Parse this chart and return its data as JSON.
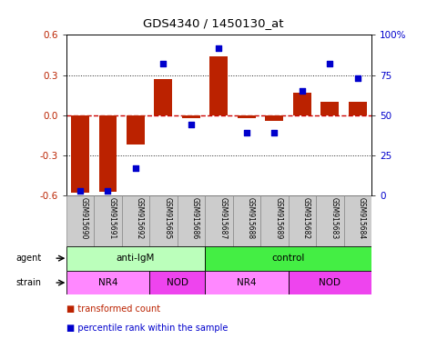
{
  "title": "GDS4340 / 1450130_at",
  "samples": [
    "GSM915690",
    "GSM915691",
    "GSM915692",
    "GSM915685",
    "GSM915686",
    "GSM915687",
    "GSM915688",
    "GSM915689",
    "GSM915682",
    "GSM915683",
    "GSM915684"
  ],
  "bar_values": [
    -0.58,
    -0.57,
    -0.22,
    0.27,
    -0.02,
    0.44,
    -0.02,
    -0.04,
    0.17,
    0.1,
    0.1
  ],
  "dot_values": [
    3,
    3,
    17,
    82,
    44,
    92,
    39,
    39,
    65,
    82,
    73
  ],
  "ylim_left": [
    -0.6,
    0.6
  ],
  "ylim_right": [
    0,
    100
  ],
  "yticks_left": [
    -0.6,
    -0.3,
    0.0,
    0.3,
    0.6
  ],
  "yticks_right": [
    0,
    25,
    50,
    75,
    100
  ],
  "ytick_labels_right": [
    "0",
    "25",
    "50",
    "75",
    "100%"
  ],
  "bar_color": "#bb2200",
  "dot_color": "#0000cc",
  "zero_line_color": "#cc0000",
  "dot_line_color": "#cccccc",
  "grid_color": "#222222",
  "agent_groups": [
    {
      "label": "anti-IgM",
      "start": 0,
      "end": 5,
      "color": "#bbffbb"
    },
    {
      "label": "control",
      "start": 5,
      "end": 11,
      "color": "#44ee44"
    }
  ],
  "strain_groups": [
    {
      "label": "NR4",
      "start": 0,
      "end": 3,
      "color": "#ff88ff"
    },
    {
      "label": "NOD",
      "start": 3,
      "end": 5,
      "color": "#ee44ee"
    },
    {
      "label": "NR4",
      "start": 5,
      "end": 8,
      "color": "#ff88ff"
    },
    {
      "label": "NOD",
      "start": 8,
      "end": 11,
      "color": "#ee44ee"
    }
  ],
  "legend_items": [
    {
      "label": "transformed count",
      "color": "#bb2200"
    },
    {
      "label": "percentile rank within the sample",
      "color": "#0000cc"
    }
  ],
  "agent_label": "agent",
  "strain_label": "strain",
  "background_color": "#ffffff",
  "plot_bg_color": "#ffffff",
  "xtick_bg_color": "#cccccc",
  "xtick_border_color": "#888888"
}
